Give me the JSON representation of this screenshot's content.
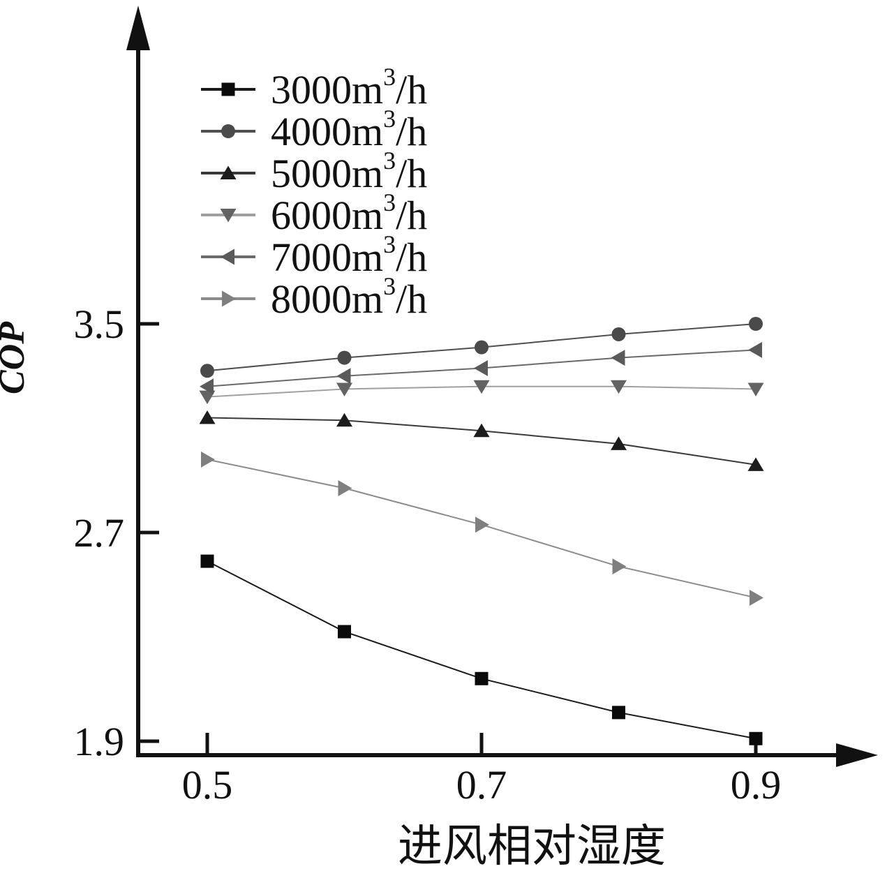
{
  "chart_data": {
    "type": "line",
    "x": [
      0.5,
      0.6,
      0.7,
      0.8,
      0.9
    ],
    "series": [
      {
        "name": "3000m³/h",
        "marker": "square",
        "color": "#0a0a0a",
        "line_color": "#1a1a1a",
        "values": [
          2.59,
          2.32,
          2.14,
          2.01,
          1.91
        ]
      },
      {
        "name": "4000m³/h",
        "marker": "circle",
        "color": "#4a4a4a",
        "line_color": "#4f4f4f",
        "values": [
          3.32,
          3.37,
          3.41,
          3.46,
          3.5
        ]
      },
      {
        "name": "5000m³/h",
        "marker": "triangle-up",
        "color": "#1c1c1c",
        "line_color": "#3a3a3a",
        "values": [
          3.14,
          3.13,
          3.09,
          3.04,
          2.96
        ]
      },
      {
        "name": "6000m³/h",
        "marker": "triangle-down",
        "color": "#636363",
        "line_color": "#a0a0a0",
        "values": [
          3.22,
          3.25,
          3.26,
          3.26,
          3.25
        ]
      },
      {
        "name": "7000m³/h",
        "marker": "triangle-left",
        "color": "#5a5a5a",
        "line_color": "#6a6a6a",
        "values": [
          3.26,
          3.3,
          3.33,
          3.37,
          3.4
        ]
      },
      {
        "name": "8000m³/h",
        "marker": "triangle-right",
        "color": "#7f7f7f",
        "line_color": "#8c8c8c",
        "values": [
          2.98,
          2.87,
          2.73,
          2.57,
          2.45
        ]
      }
    ],
    "title": "",
    "xlabel": "进风相对湿度",
    "ylabel": "COP",
    "x_ticks": [
      0.5,
      0.7,
      0.9
    ],
    "y_ticks": [
      3.5,
      2.7,
      1.9
    ],
    "xlim": [
      0.45,
      0.98
    ],
    "ylim": [
      1.85,
      4.6
    ],
    "grid": false,
    "legend_position": "upper-left-inside",
    "axis_color": "#111111"
  }
}
